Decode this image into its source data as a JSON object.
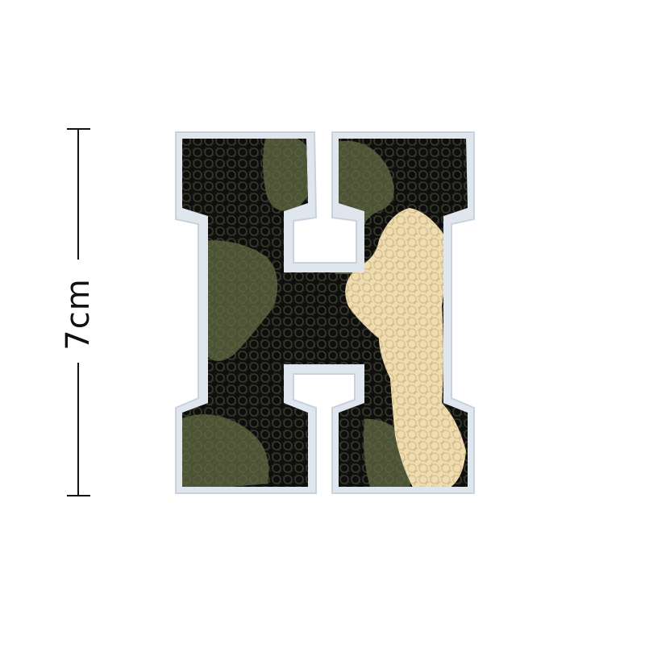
{
  "measurement": {
    "label": "7cm"
  },
  "patch": {
    "subject": "letter-h-chenille-patch",
    "colors": {
      "felt_border": "#dfe6ee",
      "black": "#0e0e0d",
      "olive": "#4e5436",
      "cream": "#efdcb0"
    }
  }
}
